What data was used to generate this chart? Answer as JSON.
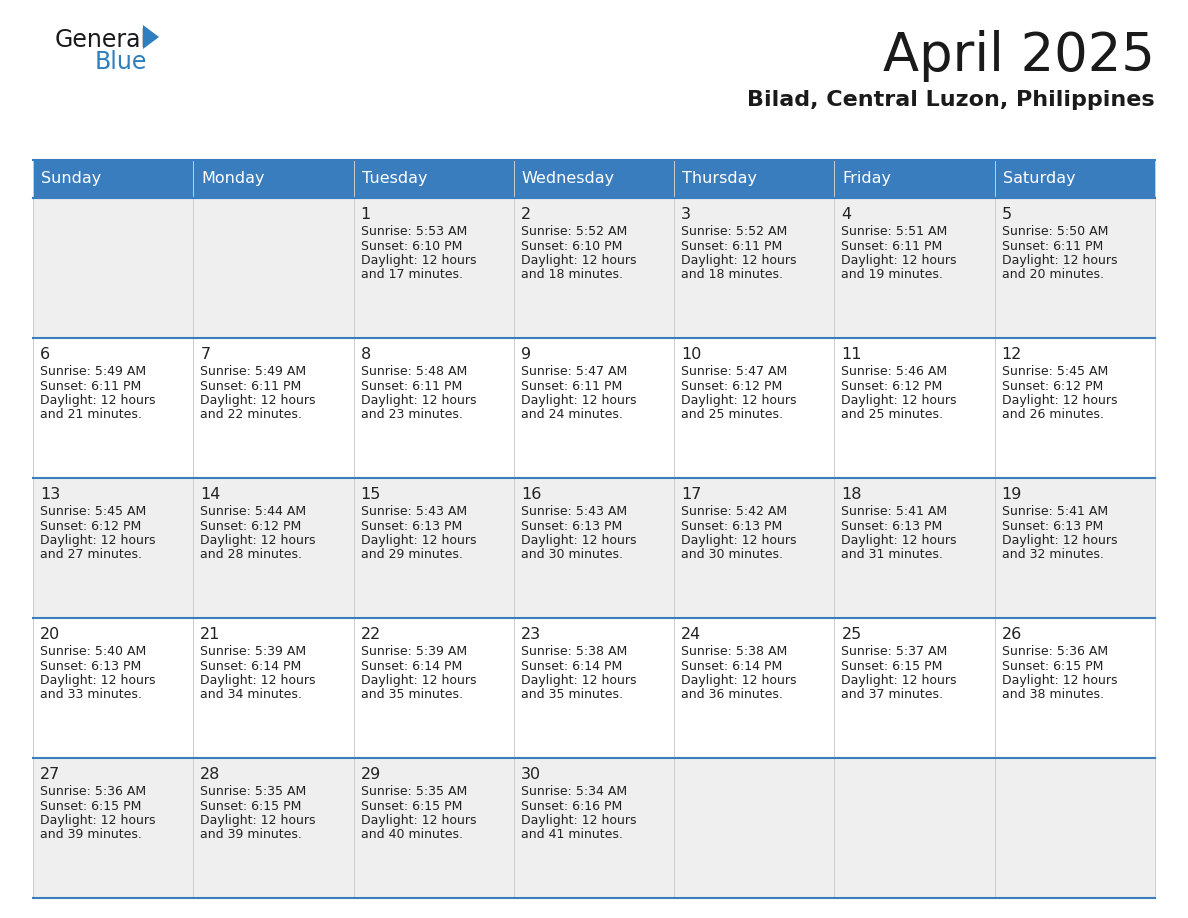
{
  "title": "April 2025",
  "subtitle": "Bilad, Central Luzon, Philippines",
  "header_bg": "#3a7dbf",
  "header_text": "#FFFFFF",
  "cell_bg_odd": "#EFEFEF",
  "cell_bg_even": "#FFFFFF",
  "row_line_color": "#3a7dbf",
  "col_line_color": "#CCCCCC",
  "text_color": "#222222",
  "day_names": [
    "Sunday",
    "Monday",
    "Tuesday",
    "Wednesday",
    "Thursday",
    "Friday",
    "Saturday"
  ],
  "days": [
    {
      "day": 1,
      "col": 2,
      "row": 0,
      "sunrise": "5:53 AM",
      "sunset": "6:10 PM",
      "daylight_min": "17"
    },
    {
      "day": 2,
      "col": 3,
      "row": 0,
      "sunrise": "5:52 AM",
      "sunset": "6:10 PM",
      "daylight_min": "18"
    },
    {
      "day": 3,
      "col": 4,
      "row": 0,
      "sunrise": "5:52 AM",
      "sunset": "6:11 PM",
      "daylight_min": "18"
    },
    {
      "day": 4,
      "col": 5,
      "row": 0,
      "sunrise": "5:51 AM",
      "sunset": "6:11 PM",
      "daylight_min": "19"
    },
    {
      "day": 5,
      "col": 6,
      "row": 0,
      "sunrise": "5:50 AM",
      "sunset": "6:11 PM",
      "daylight_min": "20"
    },
    {
      "day": 6,
      "col": 0,
      "row": 1,
      "sunrise": "5:49 AM",
      "sunset": "6:11 PM",
      "daylight_min": "21"
    },
    {
      "day": 7,
      "col": 1,
      "row": 1,
      "sunrise": "5:49 AM",
      "sunset": "6:11 PM",
      "daylight_min": "22"
    },
    {
      "day": 8,
      "col": 2,
      "row": 1,
      "sunrise": "5:48 AM",
      "sunset": "6:11 PM",
      "daylight_min": "23"
    },
    {
      "day": 9,
      "col": 3,
      "row": 1,
      "sunrise": "5:47 AM",
      "sunset": "6:11 PM",
      "daylight_min": "24"
    },
    {
      "day": 10,
      "col": 4,
      "row": 1,
      "sunrise": "5:47 AM",
      "sunset": "6:12 PM",
      "daylight_min": "25"
    },
    {
      "day": 11,
      "col": 5,
      "row": 1,
      "sunrise": "5:46 AM",
      "sunset": "6:12 PM",
      "daylight_min": "25"
    },
    {
      "day": 12,
      "col": 6,
      "row": 1,
      "sunrise": "5:45 AM",
      "sunset": "6:12 PM",
      "daylight_min": "26"
    },
    {
      "day": 13,
      "col": 0,
      "row": 2,
      "sunrise": "5:45 AM",
      "sunset": "6:12 PM",
      "daylight_min": "27"
    },
    {
      "day": 14,
      "col": 1,
      "row": 2,
      "sunrise": "5:44 AM",
      "sunset": "6:12 PM",
      "daylight_min": "28"
    },
    {
      "day": 15,
      "col": 2,
      "row": 2,
      "sunrise": "5:43 AM",
      "sunset": "6:13 PM",
      "daylight_min": "29"
    },
    {
      "day": 16,
      "col": 3,
      "row": 2,
      "sunrise": "5:43 AM",
      "sunset": "6:13 PM",
      "daylight_min": "30"
    },
    {
      "day": 17,
      "col": 4,
      "row": 2,
      "sunrise": "5:42 AM",
      "sunset": "6:13 PM",
      "daylight_min": "30"
    },
    {
      "day": 18,
      "col": 5,
      "row": 2,
      "sunrise": "5:41 AM",
      "sunset": "6:13 PM",
      "daylight_min": "31"
    },
    {
      "day": 19,
      "col": 6,
      "row": 2,
      "sunrise": "5:41 AM",
      "sunset": "6:13 PM",
      "daylight_min": "32"
    },
    {
      "day": 20,
      "col": 0,
      "row": 3,
      "sunrise": "5:40 AM",
      "sunset": "6:13 PM",
      "daylight_min": "33"
    },
    {
      "day": 21,
      "col": 1,
      "row": 3,
      "sunrise": "5:39 AM",
      "sunset": "6:14 PM",
      "daylight_min": "34"
    },
    {
      "day": 22,
      "col": 2,
      "row": 3,
      "sunrise": "5:39 AM",
      "sunset": "6:14 PM",
      "daylight_min": "35"
    },
    {
      "day": 23,
      "col": 3,
      "row": 3,
      "sunrise": "5:38 AM",
      "sunset": "6:14 PM",
      "daylight_min": "35"
    },
    {
      "day": 24,
      "col": 4,
      "row": 3,
      "sunrise": "5:38 AM",
      "sunset": "6:14 PM",
      "daylight_min": "36"
    },
    {
      "day": 25,
      "col": 5,
      "row": 3,
      "sunrise": "5:37 AM",
      "sunset": "6:15 PM",
      "daylight_min": "37"
    },
    {
      "day": 26,
      "col": 6,
      "row": 3,
      "sunrise": "5:36 AM",
      "sunset": "6:15 PM",
      "daylight_min": "38"
    },
    {
      "day": 27,
      "col": 0,
      "row": 4,
      "sunrise": "5:36 AM",
      "sunset": "6:15 PM",
      "daylight_min": "39"
    },
    {
      "day": 28,
      "col": 1,
      "row": 4,
      "sunrise": "5:35 AM",
      "sunset": "6:15 PM",
      "daylight_min": "39"
    },
    {
      "day": 29,
      "col": 2,
      "row": 4,
      "sunrise": "5:35 AM",
      "sunset": "6:15 PM",
      "daylight_min": "40"
    },
    {
      "day": 30,
      "col": 3,
      "row": 4,
      "sunrise": "5:34 AM",
      "sunset": "6:16 PM",
      "daylight_min": "41"
    }
  ],
  "logo_general_color": "#1a1a1a",
  "logo_blue_color": "#2E7FBF",
  "logo_triangle_color": "#2E7FBF"
}
